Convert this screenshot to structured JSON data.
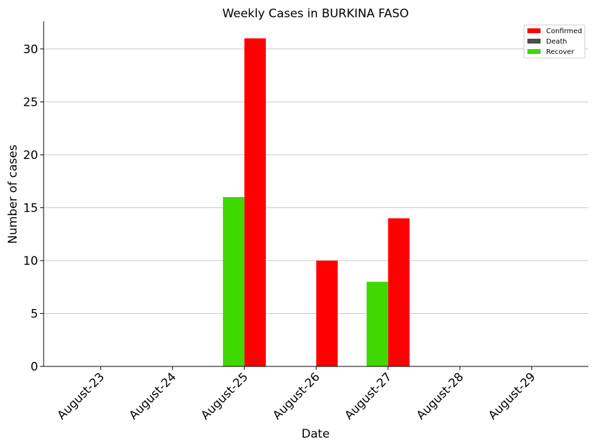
{
  "chart_data": {
    "type": "bar",
    "title": "Weekly Cases in BURKINA FASO",
    "xlabel": "Date",
    "ylabel": "Number of cases",
    "categories": [
      "August-23",
      "August-24",
      "August-25",
      "August-26",
      "August-27",
      "August-28",
      "August-29"
    ],
    "series": [
      {
        "name": "Confirmed",
        "color": "#ff0000",
        "values": [
          0,
          0,
          31,
          10,
          14,
          0,
          0
        ]
      },
      {
        "name": "Death",
        "color": "#4d4d4d",
        "values": [
          0,
          0,
          0,
          0,
          0,
          0,
          0
        ]
      },
      {
        "name": "Recover",
        "color": "#3fd800",
        "values": [
          0,
          0,
          16,
          0,
          8,
          0,
          0
        ]
      }
    ],
    "ylim": [
      0,
      32.6
    ],
    "yticks": [
      0,
      5,
      10,
      15,
      20,
      25,
      30
    ],
    "grid": "horizontal",
    "legend_position": "top-right"
  }
}
